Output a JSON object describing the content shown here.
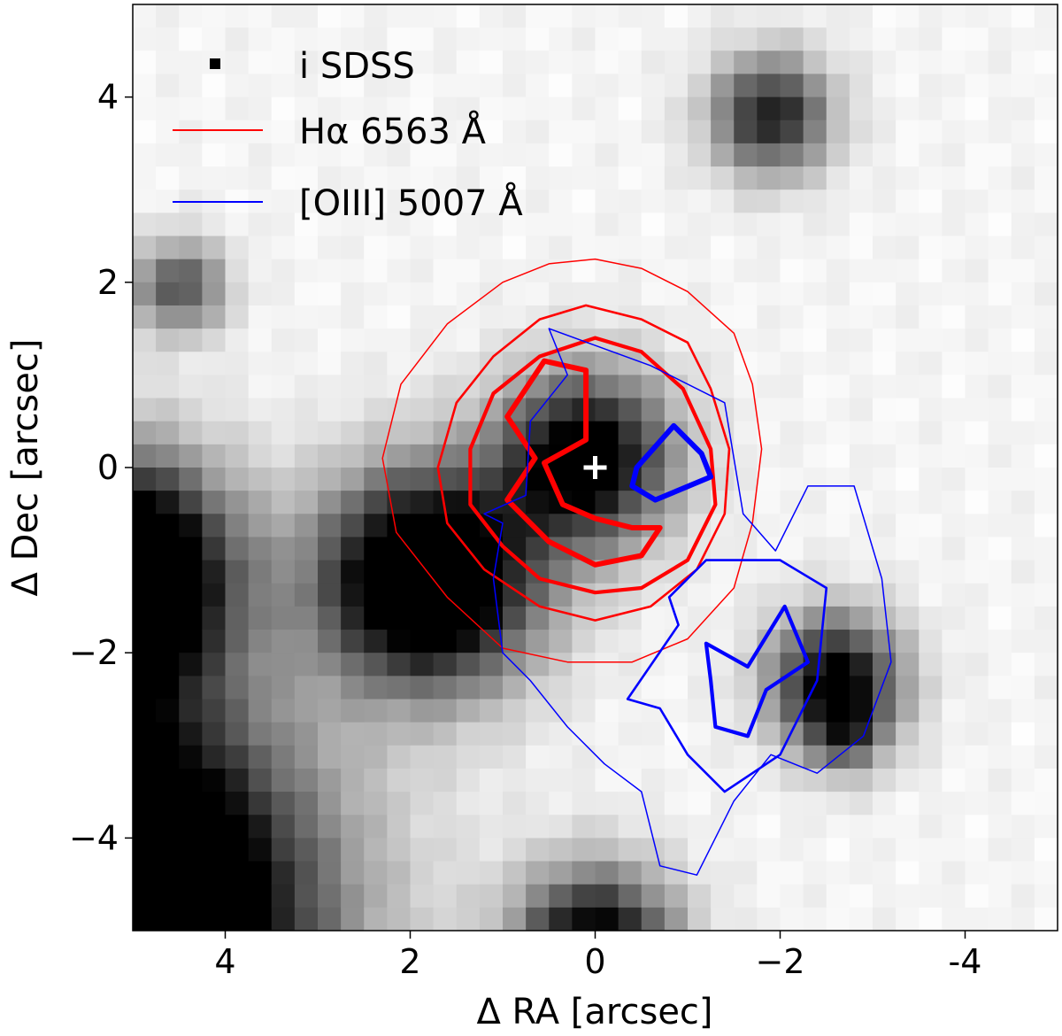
{
  "chart_data": {
    "type": "contour",
    "title": "",
    "xlabel": "Δ RA [arcsec]",
    "ylabel": "Δ Dec [arcsec]",
    "xlim": [
      5,
      -5
    ],
    "ylim": [
      -5,
      5
    ],
    "x_inverted": true,
    "x_ticks": [
      4,
      2,
      0,
      -2,
      -4
    ],
    "x_tick_labels": [
      "4",
      "2",
      "0",
      "−2",
      "-4"
    ],
    "y_ticks": [
      4,
      2,
      0,
      -2,
      -4
    ],
    "y_tick_labels": [
      "4",
      "2",
      "0",
      "−2",
      "−4"
    ],
    "grid": false,
    "legend": {
      "placement": "top-left",
      "entries": [
        {
          "label": "i SDSS",
          "color": "#000000",
          "marker": "square"
        },
        {
          "label": "Hα 6563 Å",
          "color": "#ff0000",
          "marker": "line"
        },
        {
          "label": "[OIII] 5007 Å",
          "color": "#0000ff",
          "marker": "line"
        }
      ]
    },
    "center_marker": {
      "x": 0,
      "y": 0,
      "symbol": "+",
      "color": "#ffffff"
    },
    "image_sources": [
      {
        "x": 0.1,
        "y": 0.1,
        "sigma": 0.65,
        "amp": 1.1
      },
      {
        "x": -2.6,
        "y": -2.3,
        "sigma": 0.5,
        "amp": 1.0
      },
      {
        "x": -1.9,
        "y": 3.8,
        "sigma": 0.45,
        "amp": 0.85
      },
      {
        "x": 4.5,
        "y": 1.95,
        "sigma": 0.35,
        "amp": 0.65
      },
      {
        "x": 1.8,
        "y": -1.2,
        "sigma": 0.8,
        "amp": 1.45
      },
      {
        "x": 5.2,
        "y": -1.15,
        "sigma": 0.85,
        "amp": 1.6
      },
      {
        "x": 5.6,
        "y": -4.9,
        "sigma": 1.6,
        "amp": 2.2
      },
      {
        "x": 0.0,
        "y": -5.2,
        "sigma": 0.6,
        "amp": 1.1
      },
      {
        "x": -2.7,
        "y": -2.9,
        "sigma": 0.3,
        "amp": 0.4
      }
    ],
    "series": [
      {
        "name": "Hα 6563 Å",
        "color": "#ff0000",
        "contours": [
          {
            "level": 1,
            "points": [
              [
                0.0,
                2.25
              ],
              [
                -0.5,
                2.15
              ],
              [
                -1.0,
                1.9
              ],
              [
                -1.5,
                1.45
              ],
              [
                -1.7,
                0.9
              ],
              [
                -1.8,
                0.2
              ],
              [
                -1.7,
                -0.6
              ],
              [
                -1.5,
                -1.3
              ],
              [
                -1.0,
                -1.85
              ],
              [
                -0.4,
                -2.1
              ],
              [
                0.3,
                -2.1
              ],
              [
                1.0,
                -1.95
              ],
              [
                1.6,
                -1.4
              ],
              [
                2.15,
                -0.7
              ],
              [
                2.3,
                0.1
              ],
              [
                2.1,
                0.9
              ],
              [
                1.6,
                1.55
              ],
              [
                1.0,
                2.0
              ],
              [
                0.5,
                2.2
              ]
            ]
          },
          {
            "level": 2,
            "points": [
              [
                0.1,
                1.75
              ],
              [
                -0.5,
                1.6
              ],
              [
                -1.0,
                1.35
              ],
              [
                -1.25,
                0.85
              ],
              [
                -1.45,
                0.2
              ],
              [
                -1.4,
                -0.5
              ],
              [
                -1.1,
                -1.1
              ],
              [
                -0.6,
                -1.5
              ],
              [
                0.0,
                -1.65
              ],
              [
                0.6,
                -1.5
              ],
              [
                1.2,
                -1.1
              ],
              [
                1.6,
                -0.6
              ],
              [
                1.7,
                0.0
              ],
              [
                1.5,
                0.7
              ],
              [
                1.1,
                1.2
              ],
              [
                0.6,
                1.6
              ]
            ]
          },
          {
            "level": 3,
            "points": [
              [
                0.0,
                1.4
              ],
              [
                -0.5,
                1.25
              ],
              [
                -0.95,
                0.85
              ],
              [
                -1.25,
                0.2
              ],
              [
                -1.3,
                -0.4
              ],
              [
                -1.0,
                -1.0
              ],
              [
                -0.5,
                -1.3
              ],
              [
                0.0,
                -1.35
              ],
              [
                0.6,
                -1.2
              ],
              [
                1.0,
                -0.85
              ],
              [
                1.35,
                -0.4
              ],
              [
                1.35,
                0.2
              ],
              [
                1.1,
                0.8
              ],
              [
                0.6,
                1.2
              ]
            ]
          },
          {
            "level": 4,
            "points": [
              [
                0.55,
                1.15
              ],
              [
                0.1,
                1.05
              ],
              [
                0.1,
                0.3
              ],
              [
                0.55,
                0.05
              ],
              [
                0.35,
                -0.4
              ],
              [
                0.0,
                -0.55
              ],
              [
                -0.4,
                -0.65
              ],
              [
                -0.7,
                -0.65
              ],
              [
                -0.5,
                -0.95
              ],
              [
                0.0,
                -1.05
              ],
              [
                0.5,
                -0.8
              ],
              [
                0.95,
                -0.35
              ],
              [
                0.65,
                0.1
              ],
              [
                0.95,
                0.55
              ]
            ]
          }
        ]
      },
      {
        "name": "[OIII] 5007 Å",
        "color": "#0000ff",
        "contours": [
          {
            "level": 1,
            "points": [
              [
                0.5,
                1.5
              ],
              [
                -0.6,
                1.1
              ],
              [
                -1.4,
                0.7
              ],
              [
                -1.6,
                -0.5
              ],
              [
                -1.95,
                -0.9
              ],
              [
                -2.3,
                -0.2
              ],
              [
                -2.8,
                -0.2
              ],
              [
                -3.1,
                -1.2
              ],
              [
                -3.2,
                -2.1
              ],
              [
                -2.9,
                -2.9
              ],
              [
                -2.4,
                -3.3
              ],
              [
                -1.9,
                -3.1
              ],
              [
                -1.5,
                -3.6
              ],
              [
                -1.1,
                -4.4
              ],
              [
                -0.7,
                -4.3
              ],
              [
                -0.5,
                -3.5
              ],
              [
                -0.1,
                -3.2
              ],
              [
                0.3,
                -2.8
              ],
              [
                0.7,
                -2.3
              ],
              [
                1.0,
                -2.0
              ],
              [
                1.1,
                -1.2
              ],
              [
                1.0,
                -0.6
              ],
              [
                1.2,
                -0.5
              ],
              [
                0.75,
                -0.3
              ],
              [
                0.7,
                0.5
              ],
              [
                0.3,
                1.0
              ]
            ]
          },
          {
            "level": 2,
            "points": [
              [
                -0.8,
                -1.4
              ],
              [
                -1.2,
                -1.0
              ],
              [
                -2.0,
                -1.0
              ],
              [
                -2.5,
                -1.3
              ],
              [
                -2.4,
                -2.3
              ],
              [
                -2.0,
                -3.1
              ],
              [
                -1.4,
                -3.5
              ],
              [
                -1.0,
                -3.1
              ],
              [
                -0.7,
                -2.6
              ],
              [
                -0.35,
                -2.5
              ],
              [
                -0.9,
                -1.7
              ]
            ]
          },
          {
            "level": 3,
            "points": [
              [
                -1.2,
                -1.9
              ],
              [
                -1.65,
                -2.15
              ],
              [
                -2.05,
                -1.5
              ],
              [
                -2.3,
                -2.1
              ],
              [
                -1.85,
                -2.4
              ],
              [
                -1.65,
                -2.9
              ],
              [
                -1.3,
                -2.8
              ],
              [
                -1.25,
                -2.3
              ]
            ]
          },
          {
            "level": 4,
            "points": [
              [
                -0.45,
                0.0
              ],
              [
                -0.85,
                0.45
              ],
              [
                -1.15,
                0.15
              ],
              [
                -1.25,
                -0.1
              ],
              [
                -0.65,
                -0.35
              ],
              [
                -0.4,
                -0.2
              ]
            ]
          }
        ]
      }
    ]
  }
}
